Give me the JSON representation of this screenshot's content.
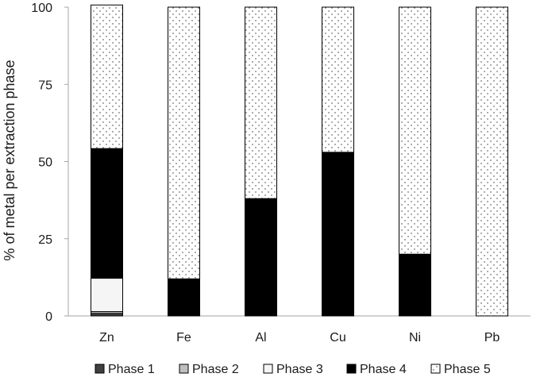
{
  "chart_data": {
    "type": "bar",
    "stacked": true,
    "title": "",
    "xlabel": "",
    "ylabel": "% of metal per extraction phase",
    "ylim": [
      0,
      100
    ],
    "yticks": [
      0,
      25,
      50,
      75,
      100
    ],
    "categories": [
      "Zn",
      "Fe",
      "Al",
      "Cu",
      "Ni",
      "Pb"
    ],
    "series": [
      {
        "name": "Phase 1",
        "color": "#404040",
        "pattern": "solid",
        "values": [
          0.8,
          0,
          0,
          0,
          0,
          0
        ]
      },
      {
        "name": "Phase 2",
        "color": "#bfbfbf",
        "pattern": "solid",
        "values": [
          0.6,
          0,
          0,
          0,
          0,
          0
        ]
      },
      {
        "name": "Phase 3",
        "color": "#f5f5f5",
        "pattern": "solid",
        "values": [
          10.8,
          0,
          0,
          0,
          0,
          0
        ]
      },
      {
        "name": "Phase 4",
        "color": "#000000",
        "pattern": "solid",
        "values": [
          42,
          12,
          38,
          53,
          20,
          0
        ]
      },
      {
        "name": "Phase 5",
        "color": "#ffffff",
        "pattern": "dots",
        "values": [
          46.5,
          88,
          62,
          47,
          80,
          100
        ]
      }
    ],
    "legend_position": "bottom",
    "grid": false
  }
}
